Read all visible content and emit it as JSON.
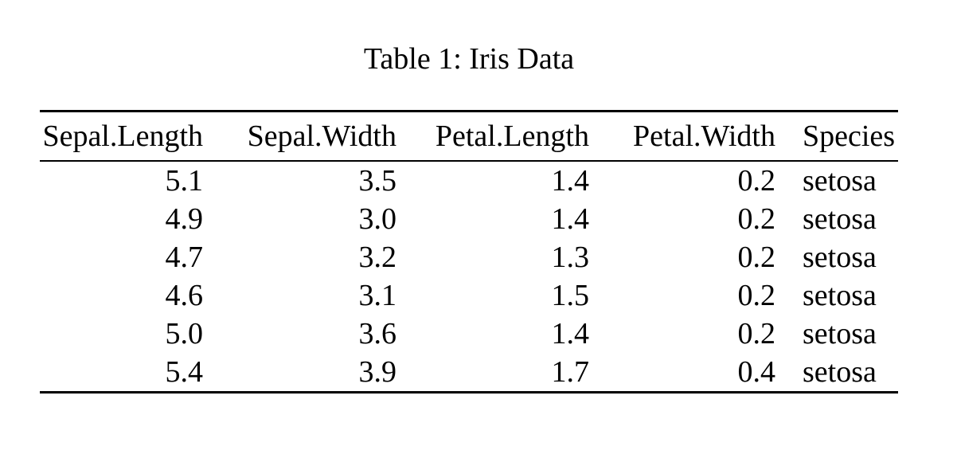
{
  "document": {
    "caption": "Table 1: Iris Data"
  },
  "table": {
    "columns": [
      "Sepal.Length",
      "Sepal.Width",
      "Petal.Length",
      "Petal.Width",
      "Species"
    ],
    "column_alignments": [
      "right",
      "right",
      "right",
      "right",
      "left"
    ],
    "rows": [
      [
        "5.1",
        "3.5",
        "1.4",
        "0.2",
        "setosa"
      ],
      [
        "4.9",
        "3.0",
        "1.4",
        "0.2",
        "setosa"
      ],
      [
        "4.7",
        "3.2",
        "1.3",
        "0.2",
        "setosa"
      ],
      [
        "4.6",
        "3.1",
        "1.5",
        "0.2",
        "setosa"
      ],
      [
        "5.0",
        "3.6",
        "1.4",
        "0.2",
        "setosa"
      ],
      [
        "5.4",
        "3.9",
        "1.7",
        "0.4",
        "setosa"
      ]
    ]
  },
  "colors": {
    "background": "#ffffff",
    "text": "#000000",
    "rule": "#000000"
  }
}
